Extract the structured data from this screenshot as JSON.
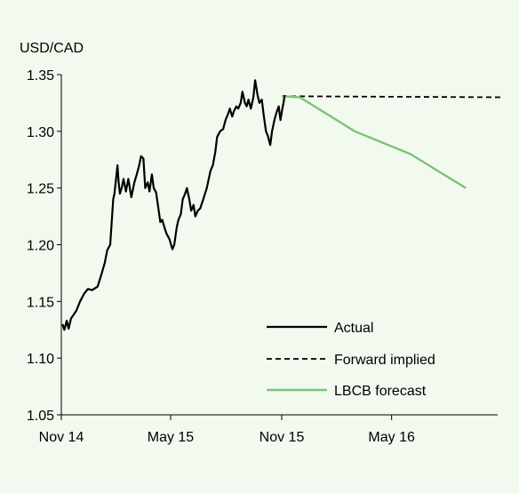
{
  "chart_data": {
    "type": "line",
    "ylabel": "USD/CAD",
    "xlabel": "",
    "ylim": [
      1.05,
      1.35
    ],
    "y_ticks": [
      "1.35",
      "1.30",
      "1.25",
      "1.20",
      "1.15",
      "1.10",
      "1.05"
    ],
    "x_ticks": [
      {
        "label": "Nov 14",
        "date": "2014-11-01"
      },
      {
        "label": "May 15",
        "date": "2015-05-01"
      },
      {
        "label": "Nov 15",
        "date": "2015-11-01"
      },
      {
        "label": "May 16",
        "date": "2016-05-01"
      }
    ],
    "legend_position": "bottom-right",
    "colors": {
      "actual": "#000000",
      "forward": "#000000",
      "forecast": "#7dc275"
    },
    "series": [
      {
        "name": "Actual",
        "style": "solid",
        "points": [
          [
            "2014-11-03",
            1.13
          ],
          [
            "2014-11-06",
            1.125
          ],
          [
            "2014-11-10",
            1.133
          ],
          [
            "2014-11-13",
            1.126
          ],
          [
            "2014-11-17",
            1.135
          ],
          [
            "2014-11-21",
            1.138
          ],
          [
            "2014-11-26",
            1.142
          ],
          [
            "2014-12-02",
            1.15
          ],
          [
            "2014-12-09",
            1.157
          ],
          [
            "2014-12-15",
            1.161
          ],
          [
            "2014-12-22",
            1.16
          ],
          [
            "2014-12-31",
            1.163
          ],
          [
            "2015-01-06",
            1.173
          ],
          [
            "2015-01-12",
            1.184
          ],
          [
            "2015-01-16",
            1.195
          ],
          [
            "2015-01-21",
            1.2
          ],
          [
            "2015-01-26",
            1.24
          ],
          [
            "2015-01-28",
            1.245
          ],
          [
            "2015-02-02",
            1.27
          ],
          [
            "2015-02-04",
            1.255
          ],
          [
            "2015-02-06",
            1.245
          ],
          [
            "2015-02-09",
            1.25
          ],
          [
            "2015-02-12",
            1.258
          ],
          [
            "2015-02-16",
            1.247
          ],
          [
            "2015-02-20",
            1.258
          ],
          [
            "2015-02-25",
            1.242
          ],
          [
            "2015-03-02",
            1.255
          ],
          [
            "2015-03-06",
            1.262
          ],
          [
            "2015-03-10",
            1.27
          ],
          [
            "2015-03-13",
            1.278
          ],
          [
            "2015-03-17",
            1.276
          ],
          [
            "2015-03-20",
            1.25
          ],
          [
            "2015-03-24",
            1.255
          ],
          [
            "2015-03-27",
            1.247
          ],
          [
            "2015-03-31",
            1.262
          ],
          [
            "2015-04-03",
            1.25
          ],
          [
            "2015-04-07",
            1.246
          ],
          [
            "2015-04-10",
            1.235
          ],
          [
            "2015-04-14",
            1.22
          ],
          [
            "2015-04-17",
            1.222
          ],
          [
            "2015-04-21",
            1.215
          ],
          [
            "2015-04-24",
            1.21
          ],
          [
            "2015-04-29",
            1.205
          ],
          [
            "2015-05-04",
            1.196
          ],
          [
            "2015-05-07",
            1.2
          ],
          [
            "2015-05-11",
            1.215
          ],
          [
            "2015-05-14",
            1.222
          ],
          [
            "2015-05-18",
            1.227
          ],
          [
            "2015-05-21",
            1.24
          ],
          [
            "2015-05-25",
            1.245
          ],
          [
            "2015-05-28",
            1.25
          ],
          [
            "2015-06-01",
            1.24
          ],
          [
            "2015-06-04",
            1.23
          ],
          [
            "2015-06-08",
            1.235
          ],
          [
            "2015-06-11",
            1.225
          ],
          [
            "2015-06-15",
            1.23
          ],
          [
            "2015-06-19",
            1.232
          ],
          [
            "2015-06-24",
            1.24
          ],
          [
            "2015-06-30",
            1.25
          ],
          [
            "2015-07-06",
            1.265
          ],
          [
            "2015-07-10",
            1.27
          ],
          [
            "2015-07-14",
            1.282
          ],
          [
            "2015-07-17",
            1.295
          ],
          [
            "2015-07-22",
            1.3
          ],
          [
            "2015-07-27",
            1.302
          ],
          [
            "2015-07-31",
            1.31
          ],
          [
            "2015-08-04",
            1.315
          ],
          [
            "2015-08-07",
            1.32
          ],
          [
            "2015-08-11",
            1.313
          ],
          [
            "2015-08-14",
            1.318
          ],
          [
            "2015-08-18",
            1.322
          ],
          [
            "2015-08-21",
            1.32
          ],
          [
            "2015-08-25",
            1.325
          ],
          [
            "2015-08-28",
            1.335
          ],
          [
            "2015-09-01",
            1.325
          ],
          [
            "2015-09-04",
            1.322
          ],
          [
            "2015-09-07",
            1.328
          ],
          [
            "2015-09-11",
            1.32
          ],
          [
            "2015-09-15",
            1.33
          ],
          [
            "2015-09-18",
            1.345
          ],
          [
            "2015-09-22",
            1.332
          ],
          [
            "2015-09-25",
            1.325
          ],
          [
            "2015-09-29",
            1.328
          ],
          [
            "2015-10-02",
            1.315
          ],
          [
            "2015-10-06",
            1.3
          ],
          [
            "2015-10-09",
            1.296
          ],
          [
            "2015-10-13",
            1.288
          ],
          [
            "2015-10-16",
            1.3
          ],
          [
            "2015-10-20",
            1.31
          ],
          [
            "2015-10-23",
            1.316
          ],
          [
            "2015-10-27",
            1.322
          ],
          [
            "2015-10-30",
            1.31
          ],
          [
            "2015-11-02",
            1.32
          ],
          [
            "2015-11-04",
            1.325
          ],
          [
            "2015-11-06",
            1.332
          ]
        ]
      },
      {
        "name": "Forward implied",
        "style": "dashed",
        "points": [
          [
            "2015-11-01",
            1.331
          ],
          [
            "2016-11-01",
            1.33
          ]
        ]
      },
      {
        "name": "LBCB forecast",
        "style": "solid-green",
        "points": [
          [
            "2015-11-01",
            1.331
          ],
          [
            "2015-12-01",
            1.33
          ],
          [
            "2016-03-01",
            1.3
          ],
          [
            "2016-06-01",
            1.28
          ],
          [
            "2016-09-01",
            1.25
          ]
        ]
      }
    ]
  }
}
